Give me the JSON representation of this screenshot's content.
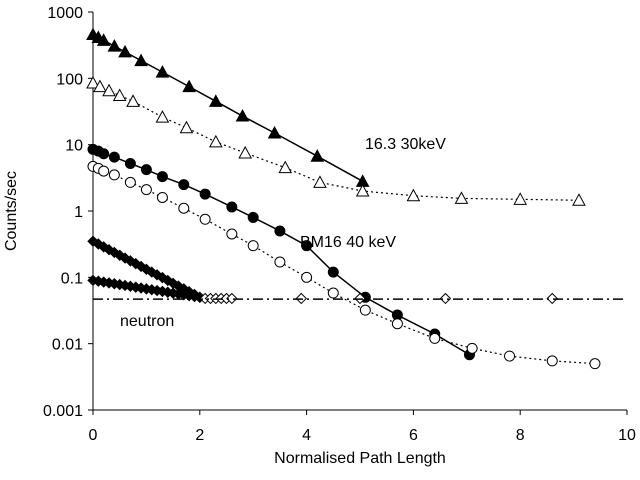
{
  "chart_data": {
    "type": "scatter",
    "xlabel": "Normalised Path Length",
    "ylabel": "Counts/sec",
    "annotations": [
      "16.3 30keV",
      "BM16 40 keV",
      "neutron"
    ],
    "xlim": [
      0,
      10
    ],
    "ylim": [
      0.001,
      1000
    ],
    "yscale": "log",
    "xticks": [
      0,
      2,
      4,
      6,
      8,
      10
    ],
    "yticks": [
      0.001,
      0.01,
      0.1,
      1,
      10,
      100,
      1000
    ],
    "grid": false,
    "series": [
      {
        "color": "#000000",
        "marker": "triangle",
        "filled": true,
        "line": "solid",
        "x": [
          0,
          0.1,
          0.2,
          0.4,
          0.6,
          0.9,
          1.3,
          1.8,
          2.3,
          2.8,
          3.4,
          4.2,
          5.05
        ],
        "values": [
          457,
          413,
          374,
          306,
          250,
          185,
          124,
          75,
          45,
          27,
          15,
          6.7,
          2.8
        ]
      },
      {
        "color": "#000000",
        "marker": "triangle",
        "filled": false,
        "line": "dotted",
        "x": [
          0,
          0.13,
          0.3,
          0.5,
          0.75,
          1.3,
          1.75,
          2.3,
          2.85,
          3.6,
          4.25,
          5.05,
          6.0,
          6.9,
          8.0,
          9.1
        ],
        "values": [
          85,
          75,
          65,
          55,
          45,
          26,
          18,
          11,
          7.5,
          4.5,
          2.7,
          2.0,
          1.7,
          1.55,
          1.5,
          1.45
        ]
      },
      {
        "color": "#000000",
        "marker": "circle",
        "filled": true,
        "line": "solid",
        "x": [
          0,
          0.1,
          0.2,
          0.4,
          0.7,
          1.0,
          1.3,
          1.7,
          2.1,
          2.6,
          3.0,
          3.5,
          4.0,
          4.5,
          5.1,
          5.7,
          6.4,
          7.05
        ],
        "values": [
          8.5,
          8,
          7.3,
          6.5,
          5.2,
          4.2,
          3.3,
          2.5,
          1.8,
          1.15,
          0.8,
          0.5,
          0.3,
          0.12,
          0.05,
          0.027,
          0.014,
          0.0068
        ]
      },
      {
        "color": "#000000",
        "marker": "circle",
        "filled": false,
        "line": "dotted",
        "x": [
          0,
          0.1,
          0.2,
          0.4,
          0.7,
          1.0,
          1.3,
          1.7,
          2.1,
          2.6,
          3.0,
          3.5,
          4.0,
          4.5,
          5.1,
          5.7,
          6.4,
          7.1,
          7.8,
          8.6,
          9.4
        ],
        "values": [
          4.7,
          4.4,
          4.0,
          3.5,
          2.7,
          2.1,
          1.6,
          1.1,
          0.75,
          0.45,
          0.3,
          0.17,
          0.1,
          0.058,
          0.032,
          0.02,
          0.012,
          0.0085,
          0.0065,
          0.0055,
          0.005
        ]
      },
      {
        "color": "#000000",
        "marker": "diamond",
        "filled": true,
        "line": "none",
        "x": [
          0,
          0.1,
          0.2,
          0.3,
          0.4,
          0.5,
          0.6,
          0.7,
          0.8,
          0.9,
          1.0,
          1.1,
          1.2,
          1.3,
          1.4,
          1.5,
          1.6,
          1.7,
          1.8,
          1.9,
          2.0
        ],
        "values": [
          0.35,
          0.318,
          0.288,
          0.261,
          0.237,
          0.215,
          0.195,
          0.177,
          0.161,
          0.146,
          0.132,
          0.12,
          0.109,
          0.099,
          0.0897,
          0.0813,
          0.0738,
          0.067,
          0.0608,
          0.0551,
          0.05
        ]
      },
      {
        "color": "#000000",
        "marker": "diamond",
        "filled": true,
        "line": "none",
        "x": [
          0,
          0.1,
          0.2,
          0.3,
          0.4,
          0.5,
          0.6,
          0.7,
          0.8,
          0.9,
          1.0,
          1.1,
          1.2,
          1.3,
          1.4,
          1.5,
          1.6,
          1.7,
          1.8,
          1.9,
          2.0
        ],
        "values": [
          0.09,
          0.0874,
          0.0849,
          0.0824,
          0.08,
          0.0777,
          0.0754,
          0.0732,
          0.0711,
          0.069,
          0.067,
          0.0651,
          0.0632,
          0.0614,
          0.0596,
          0.0578,
          0.0562,
          0.0545,
          0.053,
          0.0514,
          0.05
        ]
      },
      {
        "color": "#000000",
        "marker": "diamond",
        "filled": false,
        "line": "none",
        "x": [
          2.1,
          2.2,
          2.3,
          2.4,
          2.5,
          2.6,
          3.9,
          5.0,
          6.6,
          8.6
        ],
        "values": [
          0.048,
          0.048,
          0.048,
          0.048,
          0.048,
          0.048,
          0.048,
          0.048,
          0.048,
          0.048
        ]
      },
      {
        "color": "#000000",
        "marker": "none",
        "filled": false,
        "line": "dashdot",
        "x": [
          0,
          10
        ],
        "values": [
          0.047,
          0.047
        ]
      }
    ]
  }
}
